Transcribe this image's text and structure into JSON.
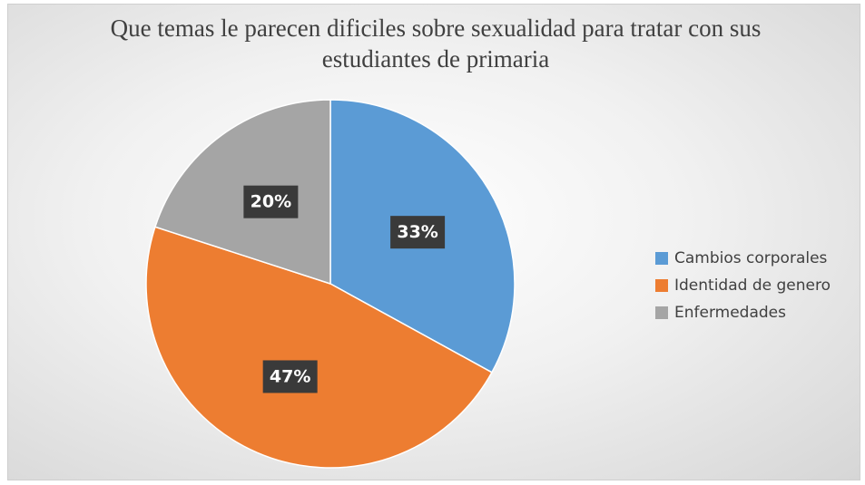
{
  "chart_data": {
    "type": "pie",
    "title": "Que temas le parecen dificiles sobre sexualidad para tratar con sus estudiantes de primaria",
    "categories": [
      "Cambios corporales",
      "Identidad de genero",
      "Enfermedades"
    ],
    "values": [
      33,
      47,
      20
    ],
    "value_labels": [
      "33%",
      "47%",
      "20%"
    ],
    "colors": [
      "#5b9bd5",
      "#ed7d31",
      "#a5a5a5"
    ],
    "legend": "right"
  }
}
